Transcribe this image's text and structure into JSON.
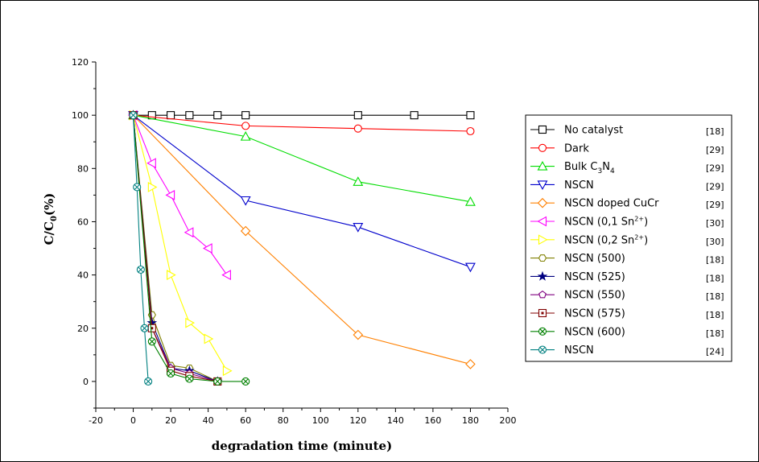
{
  "chart_data": {
    "type": "line",
    "xlabel": "degradation time (minute)",
    "ylabel": "C/C",
    "ylabel_sub": "0",
    "ylabel_suffix": "(%)",
    "xlim": [
      -20,
      200
    ],
    "ylim": [
      -10,
      120
    ],
    "xticks": [
      "-20",
      "0",
      "20",
      "40",
      "60",
      "80",
      "100",
      "120",
      "140",
      "160",
      "180",
      "200"
    ],
    "yticks": [
      "0",
      "20",
      "40",
      "60",
      "80",
      "100",
      "120"
    ],
    "xtick_values": [
      -20,
      0,
      20,
      40,
      60,
      80,
      100,
      120,
      140,
      160,
      180,
      200
    ],
    "ytick_values": [
      0,
      20,
      40,
      60,
      80,
      100,
      120
    ],
    "legend_position": "right",
    "series": [
      {
        "label": "No catalyst",
        "ref": "[18]",
        "color": "#000000",
        "marker": "square",
        "x": [
          0,
          10,
          20,
          30,
          45,
          60,
          120,
          150,
          180
        ],
        "y": [
          100,
          100,
          100,
          100,
          100,
          100,
          100,
          100,
          100
        ]
      },
      {
        "label": "Dark",
        "ref": "[29]",
        "color": "#ff0000",
        "marker": "circle",
        "x": [
          0,
          60,
          120,
          180
        ],
        "y": [
          100,
          96,
          95,
          94
        ]
      },
      {
        "label": "Bulk C",
        "sub1": "3",
        "mid": "N",
        "sub2": "4",
        "ref": "[29]",
        "color": "#00dd00",
        "marker": "triangle-up",
        "x": [
          0,
          60,
          120,
          180
        ],
        "y": [
          100,
          92,
          75,
          67.5
        ]
      },
      {
        "label": "NSCN",
        "ref": "[29]",
        "color": "#0000cc",
        "marker": "triangle-down",
        "x": [
          0,
          60,
          120,
          180
        ],
        "y": [
          100,
          68,
          58,
          43
        ]
      },
      {
        "label": "NSCN doped CuCr",
        "ref": "[29]",
        "color": "#ff8000",
        "marker": "diamond",
        "x": [
          0,
          60,
          120,
          180
        ],
        "y": [
          100,
          56.5,
          17.5,
          6.5
        ]
      },
      {
        "label": "NSCN (0,1 Sn",
        "sup": "2+",
        "tail": ")",
        "ref": "[30]",
        "color": "#ff00ff",
        "marker": "triangle-left",
        "x": [
          0,
          10,
          20,
          30,
          40,
          50
        ],
        "y": [
          100,
          82,
          70,
          56,
          50,
          40
        ]
      },
      {
        "label": "NSCN (0,2 Sn",
        "sup": "2+",
        "tail": ")",
        "ref": "[30]",
        "color": "#ffff00",
        "marker": "triangle-right",
        "x": [
          0,
          10,
          20,
          30,
          40,
          50
        ],
        "y": [
          100,
          73,
          40,
          22,
          16,
          4
        ]
      },
      {
        "label": "NSCN (500)",
        "ref": "[18]",
        "color": "#808000",
        "marker": "hex",
        "x": [
          0,
          10,
          20,
          30,
          45
        ],
        "y": [
          100,
          25,
          6,
          5,
          0
        ]
      },
      {
        "label": "NSCN (525)",
        "ref": "[18]",
        "color": "#000080",
        "marker": "star",
        "x": [
          0,
          10,
          20,
          30,
          45
        ],
        "y": [
          100,
          22,
          5,
          4,
          0
        ]
      },
      {
        "label": "NSCN (550)",
        "ref": "[18]",
        "color": "#800080",
        "marker": "pentagon",
        "x": [
          0,
          10,
          20,
          30,
          45
        ],
        "y": [
          100,
          20,
          5,
          3,
          0
        ]
      },
      {
        "label": "NSCN (575)",
        "ref": "[18]",
        "color": "#800000",
        "marker": "square-dot",
        "x": [
          0,
          10,
          20,
          30,
          45
        ],
        "y": [
          100,
          20,
          4,
          2,
          0
        ]
      },
      {
        "label": "NSCN (600)",
        "ref": "[18]",
        "color": "#008000",
        "marker": "circle-x",
        "x": [
          0,
          10,
          20,
          30,
          45,
          60
        ],
        "y": [
          100,
          15,
          3,
          1,
          0,
          0
        ]
      },
      {
        "label": "NSCN",
        "ref": "[24]",
        "color": "#008080",
        "marker": "circle-x",
        "x": [
          0,
          2,
          4,
          6,
          8
        ],
        "y": [
          100,
          73,
          42,
          20,
          0
        ]
      }
    ]
  }
}
